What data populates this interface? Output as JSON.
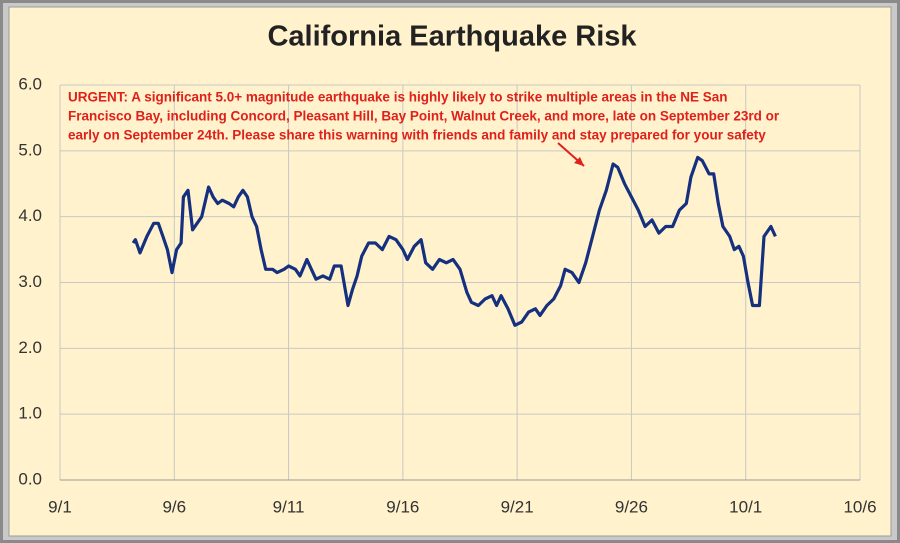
{
  "chart_data": {
    "type": "line",
    "title": "California Earthquake Risk",
    "annotation": [
      "URGENT: A significant 5.0+ magnitude earthquake is highly likely to strike multiple areas in the NE San",
      "Francisco Bay, including Concord, Pleasant Hill, Bay Point, Walnut Creek, and more, late on September 23rd or",
      "early on September 24th. Please share this warning with friends and family and stay prepared for your safety"
    ],
    "color": "#14307f",
    "grid": true,
    "xlim": [
      0,
      35
    ],
    "xticks": [
      {
        "value": 0,
        "label": "9/1"
      },
      {
        "value": 5,
        "label": "9/6"
      },
      {
        "value": 10,
        "label": "9/11"
      },
      {
        "value": 15,
        "label": "9/16"
      },
      {
        "value": 20,
        "label": "9/21"
      },
      {
        "value": 25,
        "label": "9/26"
      },
      {
        "value": 30,
        "label": "10/1"
      },
      {
        "value": 35,
        "label": "10/6"
      }
    ],
    "ylim": [
      0,
      6
    ],
    "yticks": [
      {
        "value": 0,
        "label": "0.0"
      },
      {
        "value": 1,
        "label": "1.0"
      },
      {
        "value": 2,
        "label": "2.0"
      },
      {
        "value": 3,
        "label": "3.0"
      },
      {
        "value": 4,
        "label": "4.0"
      },
      {
        "value": 5,
        "label": "5.0"
      },
      {
        "value": 6,
        "label": "6.0"
      }
    ],
    "x": [
      3.2,
      3.3,
      3.5,
      3.8,
      4.1,
      4.3,
      4.5,
      4.7,
      4.9,
      5.1,
      5.3,
      5.4,
      5.6,
      5.8,
      6.0,
      6.2,
      6.5,
      6.7,
      6.9,
      7.1,
      7.4,
      7.6,
      7.8,
      8.0,
      8.2,
      8.4,
      8.6,
      8.8,
      9.0,
      9.3,
      9.5,
      9.8,
      10.0,
      10.3,
      10.5,
      10.8,
      11.0,
      11.2,
      11.5,
      11.8,
      12.0,
      12.3,
      12.6,
      12.8,
      13.0,
      13.2,
      13.5,
      13.8,
      14.1,
      14.4,
      14.7,
      15.0,
      15.2,
      15.5,
      15.8,
      16.0,
      16.3,
      16.6,
      16.9,
      17.2,
      17.5,
      17.8,
      18.0,
      18.3,
      18.6,
      18.9,
      19.1,
      19.3,
      19.6,
      19.9,
      20.2,
      20.5,
      20.8,
      21.0,
      21.3,
      21.6,
      21.9,
      22.1,
      22.4,
      22.7,
      23.0,
      23.3,
      23.6,
      23.9,
      24.2,
      24.4,
      24.7,
      25.0,
      25.3,
      25.6,
      25.9,
      26.2,
      26.5,
      26.8,
      27.1,
      27.4,
      27.6,
      27.9,
      28.1,
      28.4,
      28.6,
      28.8,
      29.0,
      29.3,
      29.5,
      29.7,
      29.9,
      30.1,
      30.3,
      30.6,
      30.8,
      31.1,
      31.3
    ],
    "values": [
      3.6,
      3.65,
      3.45,
      3.7,
      3.9,
      3.9,
      3.7,
      3.5,
      3.15,
      3.5,
      3.6,
      4.3,
      4.4,
      3.8,
      3.9,
      4.0,
      4.45,
      4.3,
      4.2,
      4.25,
      4.2,
      4.15,
      4.3,
      4.4,
      4.3,
      4.0,
      3.85,
      3.5,
      3.2,
      3.2,
      3.15,
      3.2,
      3.25,
      3.2,
      3.1,
      3.35,
      3.2,
      3.05,
      3.1,
      3.05,
      3.25,
      3.25,
      2.65,
      2.9,
      3.1,
      3.4,
      3.6,
      3.6,
      3.5,
      3.7,
      3.65,
      3.5,
      3.35,
      3.55,
      3.65,
      3.3,
      3.2,
      3.35,
      3.3,
      3.35,
      3.2,
      2.85,
      2.7,
      2.65,
      2.75,
      2.8,
      2.65,
      2.8,
      2.6,
      2.35,
      2.4,
      2.55,
      2.6,
      2.5,
      2.65,
      2.75,
      2.95,
      3.2,
      3.15,
      3.0,
      3.3,
      3.7,
      4.1,
      4.4,
      4.8,
      4.75,
      4.5,
      4.3,
      4.1,
      3.85,
      3.95,
      3.75,
      3.85,
      3.85,
      4.1,
      4.2,
      4.6,
      4.9,
      4.85,
      4.65,
      4.65,
      4.2,
      3.85,
      3.7,
      3.5,
      3.55,
      3.4,
      3.0,
      2.65,
      2.65,
      3.7,
      3.85,
      3.7
    ]
  }
}
